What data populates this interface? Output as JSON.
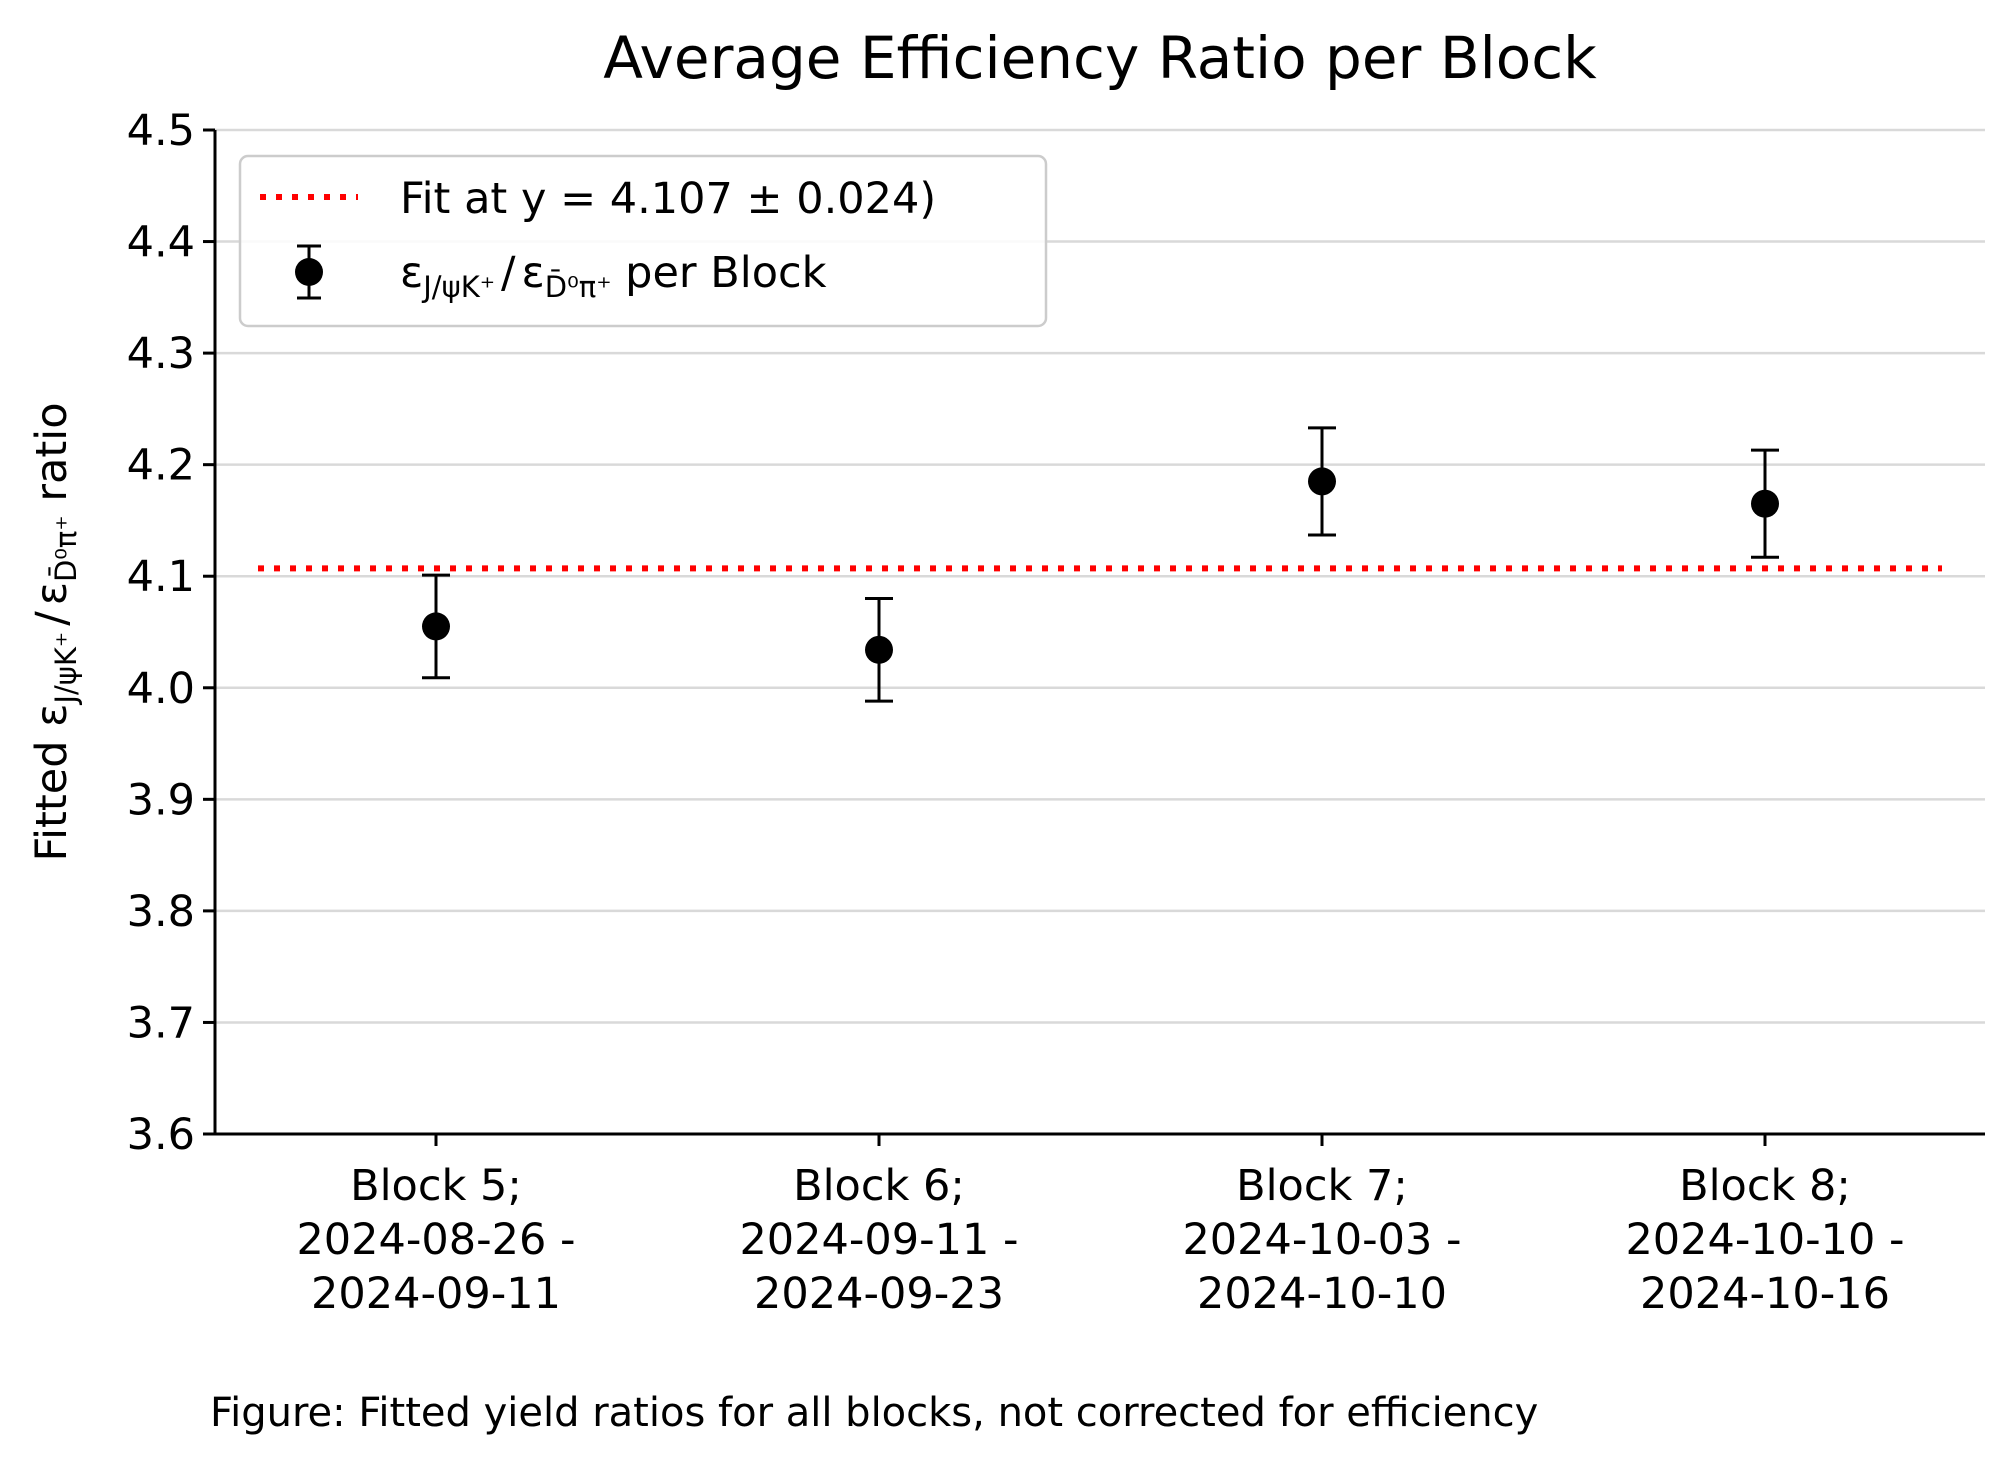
{
  "chart_data": {
    "type": "scatter",
    "title": "Average Efficiency Ratio per Block",
    "ylabel": {
      "prefix": "Fitted ",
      "eps1": "ε",
      "sub1": "J/ψK⁺",
      "slash": "/",
      "eps2": "ε",
      "sub2": "D̄⁰π⁺",
      "suffix": " ratio"
    },
    "ylim": [
      3.6,
      4.5
    ],
    "yticks": [
      "3.6",
      "3.7",
      "3.8",
      "3.9",
      "4.0",
      "4.1",
      "4.2",
      "4.3",
      "4.4",
      "4.5"
    ],
    "ytick_values": [
      3.6,
      3.7,
      3.8,
      3.9,
      4.0,
      4.1,
      4.2,
      4.3,
      4.4,
      4.5
    ],
    "grid": "horizontal",
    "categories": [
      [
        "Block 5;",
        "2024-08-26 -",
        "2024-09-11"
      ],
      [
        "Block 6;",
        "2024-09-11 -",
        "2024-09-23"
      ],
      [
        "Block 7;",
        "2024-10-03 -",
        "2024-10-10"
      ],
      [
        "Block 8;",
        "2024-10-10 -",
        "2024-10-16"
      ]
    ],
    "series": [
      {
        "name": "ε J/ψK⁺ / ε D̄⁰π⁺ per Block",
        "values": [
          4.055,
          4.034,
          4.185,
          4.165
        ],
        "errors": [
          0.046,
          0.046,
          0.048,
          0.048
        ],
        "color": "#000000"
      }
    ],
    "fit_line": {
      "y": 4.107,
      "label": "Fit at y = 4.107 ± 0.024)",
      "color": "#ff0000",
      "style": "dotted"
    },
    "legend": {
      "placement": "top-left",
      "fit_label": "Fit at y = 4.107 ± 0.024)",
      "points_label": {
        "eps1": "ε",
        "sub1": "J/ψK⁺",
        "slash": "/",
        "eps2": "ε",
        "sub2": "D̄⁰π⁺",
        "suffix": " per Block"
      }
    }
  },
  "caption": "Figure: Fitted yield ratios for all blocks, not corrected for efficiency"
}
